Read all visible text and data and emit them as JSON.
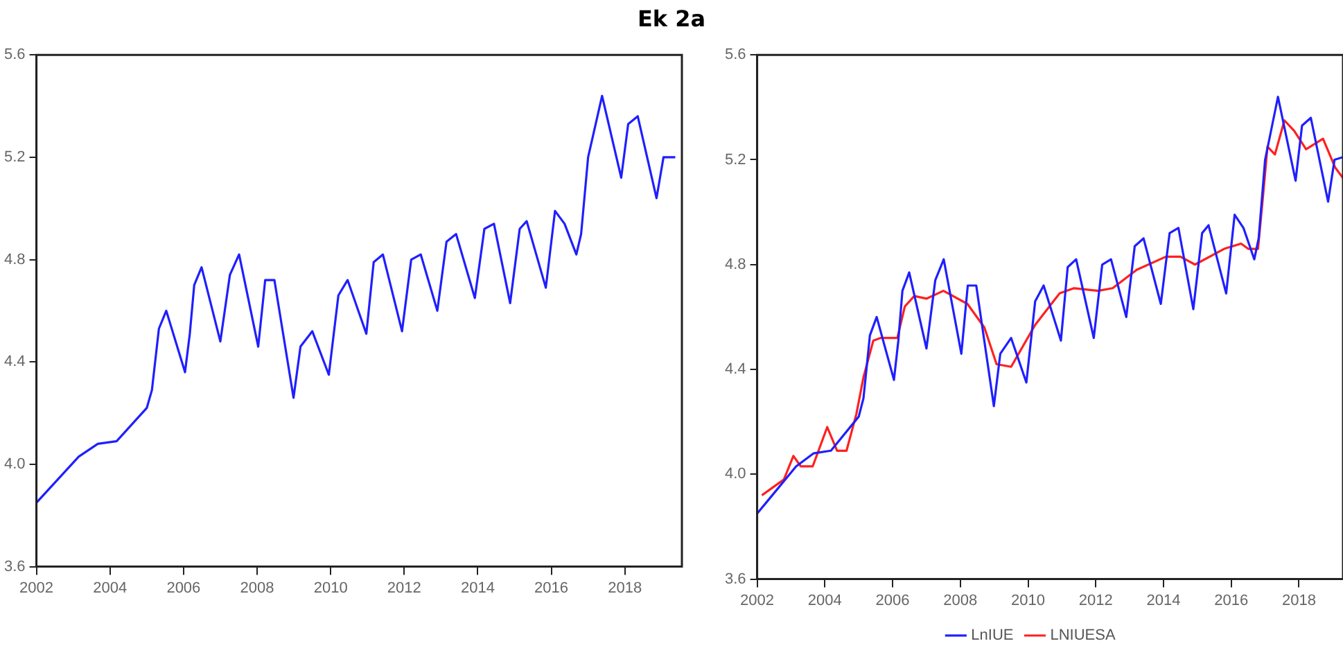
{
  "chart_data": [
    {
      "type": "line",
      "title": "Ek 2a",
      "xlim": [
        2002,
        2019.55
      ],
      "xticks": [
        2002,
        2004,
        2006,
        2008,
        2010,
        2012,
        2014,
        2016,
        2018
      ],
      "ylim": [
        3.6,
        5.6
      ],
      "yticks": [
        {
          "value": 3.6,
          "label": "3.6"
        },
        {
          "value": 4,
          "label": "4.0"
        },
        {
          "value": 4.4,
          "label": "4.4"
        },
        {
          "value": 4.8,
          "label": "4.8"
        },
        {
          "value": 5.2,
          "label": "5.2"
        },
        {
          "value": 5.6,
          "label": "5.6"
        }
      ],
      "grid": false,
      "legend": false,
      "series": [
        {
          "color": "#1f1fff",
          "x": [
            2002,
            2002.32,
            2003.15,
            2003.67,
            2004.18,
            2005,
            2005.14,
            2005.33,
            2005.53,
            2006.04,
            2006.17,
            2006.29,
            2006.49,
            2007,
            2007.26,
            2007.51,
            2008.03,
            2008.22,
            2008.47,
            2008.99,
            2009.18,
            2009.5,
            2009.95,
            2010.21,
            2010.46,
            2010.97,
            2011.17,
            2011.42,
            2011.94,
            2012.19,
            2012.45,
            2012.9,
            2013.15,
            2013.41,
            2013.92,
            2014.18,
            2014.44,
            2014.88,
            2015.14,
            2015.33,
            2015.85,
            2016.1,
            2016.36,
            2016.68,
            2016.81,
            2017,
            2017.38,
            2017.9,
            2018.09,
            2018.35,
            2018.86,
            2019.05,
            2019.37
          ],
          "values": [
            3.85,
            3.9,
            4.03,
            4.08,
            4.09,
            4.22,
            4.29,
            4.53,
            4.6,
            4.36,
            4.51,
            4.7,
            4.77,
            4.48,
            4.74,
            4.82,
            4.46,
            4.72,
            4.72,
            4.26,
            4.46,
            4.52,
            4.35,
            4.66,
            4.72,
            4.51,
            4.79,
            4.82,
            4.52,
            4.8,
            4.82,
            4.6,
            4.87,
            4.9,
            4.65,
            4.92,
            4.94,
            4.63,
            4.92,
            4.95,
            4.69,
            4.99,
            4.94,
            4.82,
            4.9,
            5.2,
            5.44,
            5.12,
            5.33,
            5.36,
            5.04,
            5.2,
            5.2
          ]
        }
      ]
    },
    {
      "type": "line",
      "xlim": [
        2002,
        2019.3
      ],
      "xticks": [
        2002,
        2004,
        2006,
        2008,
        2010,
        2012,
        2014,
        2016,
        2018
      ],
      "ylim": [
        3.6,
        5.6
      ],
      "yticks": [
        {
          "value": 3.6,
          "label": "3.6"
        },
        {
          "value": 4,
          "label": "4.0"
        },
        {
          "value": 4.4,
          "label": "4.4"
        },
        {
          "value": 4.8,
          "label": "4.8"
        },
        {
          "value": 5.2,
          "label": "5.2"
        },
        {
          "value": 5.6,
          "label": "5.6"
        }
      ],
      "grid": false,
      "legend": "bottom",
      "series": [
        {
          "name": "LnIUE",
          "color": "#1f1fff",
          "x": [
            2002,
            2002.32,
            2003.15,
            2003.67,
            2004.18,
            2005,
            2005.14,
            2005.33,
            2005.53,
            2006.04,
            2006.17,
            2006.29,
            2006.49,
            2007,
            2007.26,
            2007.51,
            2008.03,
            2008.22,
            2008.47,
            2008.99,
            2009.18,
            2009.5,
            2009.95,
            2010.21,
            2010.46,
            2010.97,
            2011.17,
            2011.42,
            2011.94,
            2012.19,
            2012.45,
            2012.9,
            2013.15,
            2013.41,
            2013.92,
            2014.18,
            2014.44,
            2014.88,
            2015.14,
            2015.33,
            2015.85,
            2016.1,
            2016.36,
            2016.68,
            2016.81,
            2017,
            2017.38,
            2017.9,
            2018.09,
            2018.35,
            2018.86,
            2019.05,
            2019.3
          ],
          "values": [
            3.85,
            3.9,
            4.03,
            4.08,
            4.09,
            4.22,
            4.29,
            4.53,
            4.6,
            4.36,
            4.51,
            4.7,
            4.77,
            4.48,
            4.74,
            4.82,
            4.46,
            4.72,
            4.72,
            4.26,
            4.46,
            4.52,
            4.35,
            4.66,
            4.72,
            4.51,
            4.79,
            4.82,
            4.52,
            4.8,
            4.82,
            4.6,
            4.87,
            4.9,
            4.65,
            4.92,
            4.94,
            4.63,
            4.92,
            4.95,
            4.69,
            4.99,
            4.94,
            4.82,
            4.9,
            5.2,
            5.44,
            5.12,
            5.33,
            5.36,
            5.04,
            5.2,
            5.21
          ]
        },
        {
          "name": "LNIUESA",
          "color": "#ff2020",
          "x": [
            2002.14,
            2002.79,
            2003.07,
            2003.29,
            2003.64,
            2004.07,
            2004.36,
            2004.64,
            2004.93,
            2005.14,
            2005.43,
            2005.64,
            2006.14,
            2006.36,
            2006.64,
            2007,
            2007.5,
            2008.21,
            2008.71,
            2009.07,
            2009.5,
            2010.21,
            2010.93,
            2011.36,
            2012.07,
            2012.5,
            2013.21,
            2014.07,
            2014.5,
            2014.93,
            2015.79,
            2016.29,
            2016.5,
            2016.79,
            2016.93,
            2017.07,
            2017.29,
            2017.57,
            2017.86,
            2018.21,
            2018.71,
            2019.07,
            2019.3
          ],
          "values": [
            3.92,
            3.98,
            4.07,
            4.03,
            4.03,
            4.18,
            4.09,
            4.09,
            4.23,
            4.37,
            4.51,
            4.52,
            4.52,
            4.64,
            4.68,
            4.67,
            4.7,
            4.65,
            4.56,
            4.42,
            4.41,
            4.57,
            4.69,
            4.71,
            4.7,
            4.71,
            4.78,
            4.83,
            4.83,
            4.8,
            4.86,
            4.88,
            4.86,
            4.86,
            5.05,
            5.25,
            5.22,
            5.35,
            5.31,
            5.24,
            5.28,
            5.17,
            5.13
          ]
        }
      ]
    }
  ]
}
